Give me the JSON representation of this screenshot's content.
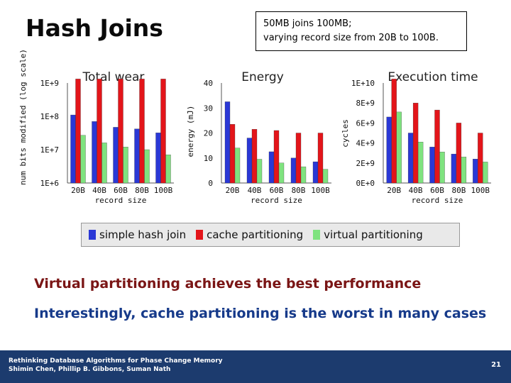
{
  "title": "Hash Joins",
  "callout": {
    "line1": "50MB joins 100MB;",
    "line2": "varying record size from 20B to 100B."
  },
  "colors": {
    "simple": "#2a38d6",
    "cache": "#e3151a",
    "virtual": "#7fe37f",
    "note1": "#7a1515",
    "note2": "#163a8a"
  },
  "legend": [
    {
      "label": "simple hash join",
      "color": "#2a38d6"
    },
    {
      "label": "cache partitioning",
      "color": "#e3151a"
    },
    {
      "label": "virtual partitioning",
      "color": "#7fe37f"
    }
  ],
  "notes": {
    "line1": "Virtual partitioning achieves the best performance",
    "line2": "Interestingly, cache partitioning is the worst in many cases"
  },
  "footer": {
    "line1": "Rethinking Database Algorithms for Phase Change Memory",
    "line2": "Shimin Chen, Phillip B. Gibbons, Suman Nath",
    "page": "21"
  },
  "chart_data": [
    {
      "type": "bar",
      "title": "Total wear",
      "xlabel": "record size",
      "ylabel": "num bits modified (log scale)",
      "yscale": "log",
      "ylim": [
        1000000,
        1000000000
      ],
      "yticks": [
        "1E+6",
        "1E+7",
        "1E+8",
        "1E+9"
      ],
      "categories": [
        "20B",
        "40B",
        "60B",
        "80B",
        "100B"
      ],
      "series": [
        {
          "name": "simple hash join",
          "values": [
            110000000,
            70000000,
            47000000,
            42000000,
            32000000
          ]
        },
        {
          "name": "cache partitioning",
          "values": [
            5000000000,
            5000000000,
            5000000000,
            5000000000,
            5000000000
          ]
        },
        {
          "name": "virtual partitioning",
          "values": [
            27000000,
            16000000,
            12000000,
            10000000,
            7000000
          ]
        }
      ]
    },
    {
      "type": "bar",
      "title": "Energy",
      "xlabel": "record size",
      "ylabel": "energy (mJ)",
      "ylim": [
        0,
        40
      ],
      "yticks": [
        "0",
        "10",
        "20",
        "30",
        "40"
      ],
      "categories": [
        "20B",
        "40B",
        "60B",
        "80B",
        "100B"
      ],
      "series": [
        {
          "name": "simple hash join",
          "values": [
            32.5,
            18,
            12.5,
            10,
            8.5
          ]
        },
        {
          "name": "cache partitioning",
          "values": [
            23.5,
            21.5,
            21,
            20,
            20
          ]
        },
        {
          "name": "virtual partitioning",
          "values": [
            14,
            9.5,
            8,
            6.5,
            5.5
          ]
        }
      ]
    },
    {
      "type": "bar",
      "title": "Execution time",
      "xlabel": "record size",
      "ylabel": "cycles",
      "ylim": [
        0,
        10000000000
      ],
      "yticks": [
        "0E+0",
        "2E+9",
        "4E+9",
        "6E+9",
        "8E+9",
        "1E+10"
      ],
      "categories": [
        "20B",
        "40B",
        "60B",
        "80B",
        "100B"
      ],
      "series": [
        {
          "name": "simple hash join",
          "values": [
            6600000000,
            5000000000,
            3600000000,
            2900000000,
            2400000000
          ]
        },
        {
          "name": "cache partitioning",
          "values": [
            10500000000,
            8000000000,
            7300000000,
            6000000000,
            5000000000
          ]
        },
        {
          "name": "virtual partitioning",
          "values": [
            7100000000,
            4100000000,
            3100000000,
            2600000000,
            2100000000
          ]
        }
      ]
    }
  ]
}
